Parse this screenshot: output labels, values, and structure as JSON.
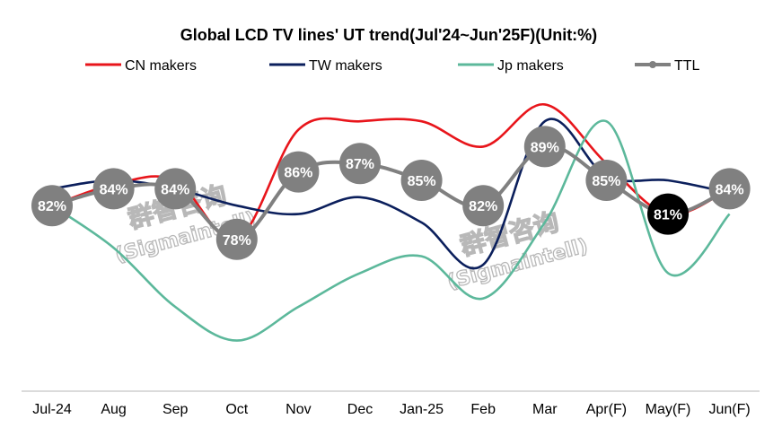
{
  "chart_data": {
    "type": "line",
    "title": "Global LCD TV lines' UT trend(Jul'24~Jun'25F)(Unit:%)",
    "categories": [
      "Jul-24",
      "Aug",
      "Sep",
      "Oct",
      "Nov",
      "Dec",
      "Jan-25",
      "Feb",
      "Mar",
      "Apr(F)",
      "May(F)",
      "Jun(F)"
    ],
    "ylim": [
      60,
      100
    ],
    "grid": false,
    "legend_position": "top",
    "series": [
      {
        "name": "CN makers",
        "color": "#e8151b",
        "values": [
          82,
          84.5,
          85,
          78,
          91,
          92,
          92,
          89,
          94,
          87,
          81,
          84
        ],
        "labels": false
      },
      {
        "name": "TW makers",
        "color": "#0b1f5c",
        "values": [
          84,
          85,
          84,
          82,
          81,
          83,
          80,
          75,
          92,
          85.5,
          85,
          83.5
        ],
        "labels": false
      },
      {
        "name": "Jp makers",
        "color": "#5cb89b",
        "values": [
          82,
          77,
          70,
          66,
          70,
          74,
          76,
          71,
          80,
          92,
          74,
          81
        ],
        "labels": false
      },
      {
        "name": "TTL",
        "color": "#808080",
        "values": [
          82,
          84,
          84,
          78,
          86,
          87,
          85,
          82,
          89,
          85,
          81,
          84
        ],
        "labels": true
      }
    ],
    "highlight_label_index": 10,
    "highlight_color": "#000000",
    "label_suffix": "%"
  },
  "watermark": {
    "lines": [
      "群智咨询",
      "(Sigmaintell)"
    ],
    "color": "#b8b8b8"
  }
}
